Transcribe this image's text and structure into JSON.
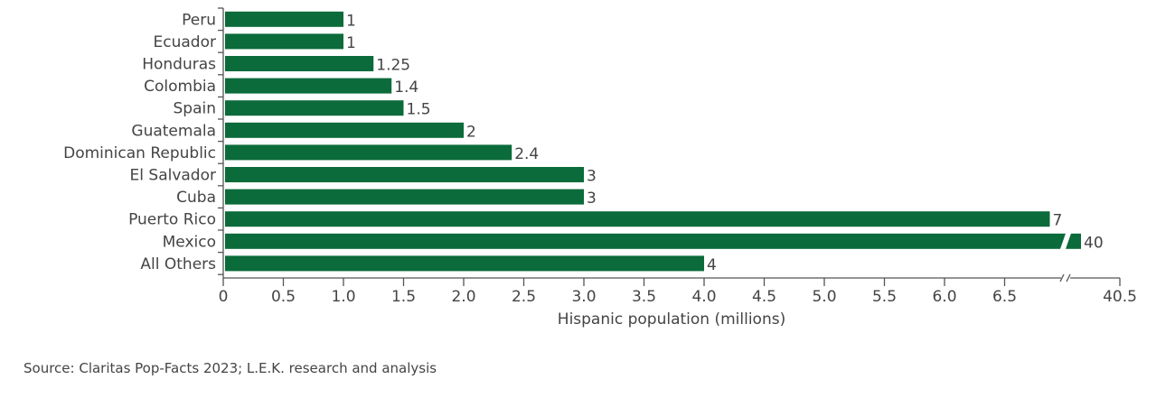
{
  "chart_data": {
    "type": "bar",
    "orientation": "horizontal",
    "categories": [
      "Peru",
      "Ecuador",
      "Honduras",
      "Colombia",
      "Spain",
      "Guatemala",
      "Dominican Republic",
      "El Salvador",
      "Cuba",
      "Puerto Rico",
      "Mexico",
      "All Others"
    ],
    "values": [
      1,
      1,
      1.25,
      1.4,
      1.5,
      2,
      2.4,
      3,
      3,
      7,
      40,
      4
    ],
    "value_labels": [
      "1",
      "1",
      "1.25",
      "1.4",
      "1.5",
      "2",
      "2.4",
      "3",
      "3",
      "7",
      "40",
      "4"
    ],
    "xlabel": "Hispanic population (millions)",
    "ylabel": "",
    "xticks": [
      "0",
      "0.5",
      "1.0",
      "1.5",
      "2.0",
      "2.5",
      "3.0",
      "3.5",
      "4.0",
      "4.5",
      "5.0",
      "5.5",
      "6.0",
      "6.5",
      "40.5"
    ],
    "xlim": [
      0,
      40.5
    ],
    "axis_break": true,
    "grid": false,
    "bar_color": "#0b6b3a"
  },
  "source": "Source: Claritas Pop-Facts 2023; L.E.K. research and analysis"
}
